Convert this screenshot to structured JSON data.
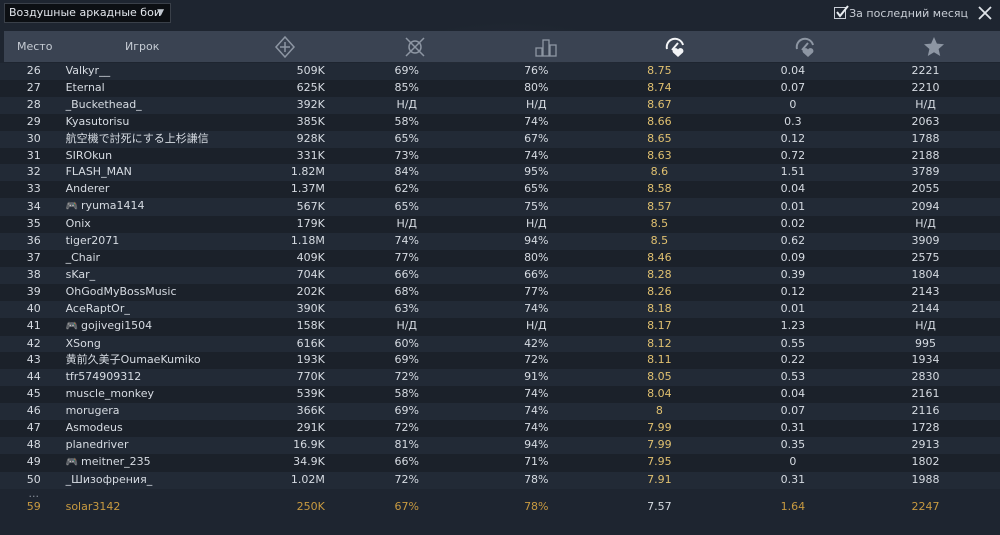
{
  "mode_selector": {
    "value": "Воздушные аркадные бои"
  },
  "period": {
    "label": "За последний месяц",
    "checked": true
  },
  "columns": {
    "place": "Место",
    "player": "Игрок",
    "icons": [
      "score-icon",
      "kills-per-battle-icon",
      "win-rate-icon",
      "efficiency-icon",
      "deaths-ratio-icon",
      "star-icon"
    ]
  },
  "rows": [
    {
      "place": "26",
      "player": "Valkyr__",
      "gamepad": false,
      "c1": "509K",
      "c2": "69%",
      "c3": "76%",
      "c4": "8.75",
      "c5": "0.04",
      "c6": "2221"
    },
    {
      "place": "27",
      "player": "Eternal",
      "gamepad": false,
      "c1": "625K",
      "c2": "85%",
      "c3": "80%",
      "c4": "8.74",
      "c5": "0.07",
      "c6": "2210"
    },
    {
      "place": "28",
      "player": "_Buckethead_",
      "gamepad": false,
      "c1": "392K",
      "c2": "Н/Д",
      "c3": "Н/Д",
      "c4": "8.67",
      "c5": "0",
      "c6": "Н/Д"
    },
    {
      "place": "29",
      "player": "Kyasutorisu",
      "gamepad": false,
      "c1": "385K",
      "c2": "58%",
      "c3": "74%",
      "c4": "8.66",
      "c5": "0.3",
      "c6": "2063"
    },
    {
      "place": "30",
      "player": "航空機で討死にする上杉謙信",
      "gamepad": false,
      "c1": "928K",
      "c2": "65%",
      "c3": "67%",
      "c4": "8.65",
      "c5": "0.12",
      "c6": "1788"
    },
    {
      "place": "31",
      "player": "SIROkun",
      "gamepad": false,
      "c1": "331K",
      "c2": "73%",
      "c3": "74%",
      "c4": "8.63",
      "c5": "0.72",
      "c6": "2188"
    },
    {
      "place": "32",
      "player": "FLASH_MAN",
      "gamepad": false,
      "c1": "1.82M",
      "c2": "84%",
      "c3": "95%",
      "c4": "8.6",
      "c5": "1.51",
      "c6": "3789"
    },
    {
      "place": "33",
      "player": "Anderer",
      "gamepad": false,
      "c1": "1.37M",
      "c2": "62%",
      "c3": "65%",
      "c4": "8.58",
      "c5": "0.04",
      "c6": "2055"
    },
    {
      "place": "34",
      "player": "ryuma1414",
      "gamepad": true,
      "c1": "567K",
      "c2": "65%",
      "c3": "75%",
      "c4": "8.57",
      "c5": "0.01",
      "c6": "2094"
    },
    {
      "place": "35",
      "player": "Onix",
      "gamepad": false,
      "c1": "179K",
      "c2": "Н/Д",
      "c3": "Н/Д",
      "c4": "8.5",
      "c5": "0.02",
      "c6": "Н/Д"
    },
    {
      "place": "36",
      "player": "tiger2071",
      "gamepad": false,
      "c1": "1.18M",
      "c2": "74%",
      "c3": "94%",
      "c4": "8.5",
      "c5": "0.62",
      "c6": "3909"
    },
    {
      "place": "37",
      "player": "_Chair",
      "gamepad": false,
      "c1": "409K",
      "c2": "77%",
      "c3": "80%",
      "c4": "8.46",
      "c5": "0.09",
      "c6": "2575"
    },
    {
      "place": "38",
      "player": "sKar_",
      "gamepad": false,
      "c1": "704K",
      "c2": "66%",
      "c3": "66%",
      "c4": "8.28",
      "c5": "0.39",
      "c6": "1804"
    },
    {
      "place": "39",
      "player": "OhGodMyBossMusic",
      "gamepad": false,
      "c1": "202K",
      "c2": "68%",
      "c3": "77%",
      "c4": "8.26",
      "c5": "0.12",
      "c6": "2143"
    },
    {
      "place": "40",
      "player": "AceRaptOr_",
      "gamepad": false,
      "c1": "390K",
      "c2": "63%",
      "c3": "74%",
      "c4": "8.18",
      "c5": "0.01",
      "c6": "2144"
    },
    {
      "place": "41",
      "player": "gojivegi1504",
      "gamepad": true,
      "c1": "158K",
      "c2": "Н/Д",
      "c3": "Н/Д",
      "c4": "8.17",
      "c5": "1.23",
      "c6": "Н/Д"
    },
    {
      "place": "42",
      "player": "XSong",
      "gamepad": false,
      "c1": "616K",
      "c2": "60%",
      "c3": "42%",
      "c4": "8.12",
      "c5": "0.55",
      "c6": "995"
    },
    {
      "place": "43",
      "player": "黄前久美子OumaeKumiko",
      "gamepad": false,
      "c1": "193K",
      "c2": "69%",
      "c3": "72%",
      "c4": "8.11",
      "c5": "0.22",
      "c6": "1934"
    },
    {
      "place": "44",
      "player": "tfr574909312",
      "gamepad": false,
      "c1": "770K",
      "c2": "72%",
      "c3": "91%",
      "c4": "8.05",
      "c5": "0.53",
      "c6": "2830"
    },
    {
      "place": "45",
      "player": "muscle_monkey",
      "gamepad": false,
      "c1": "539K",
      "c2": "58%",
      "c3": "74%",
      "c4": "8.04",
      "c5": "0.04",
      "c6": "2161"
    },
    {
      "place": "46",
      "player": "morugera",
      "gamepad": false,
      "c1": "366K",
      "c2": "69%",
      "c3": "74%",
      "c4": "8",
      "c5": "0.07",
      "c6": "2116"
    },
    {
      "place": "47",
      "player": "Asmodeus",
      "gamepad": false,
      "c1": "291K",
      "c2": "72%",
      "c3": "74%",
      "c4": "7.99",
      "c5": "0.31",
      "c6": "1728"
    },
    {
      "place": "48",
      "player": "planedriver",
      "gamepad": false,
      "c1": "16.9K",
      "c2": "81%",
      "c3": "94%",
      "c4": "7.99",
      "c5": "0.35",
      "c6": "2913"
    },
    {
      "place": "49",
      "player": "meitner_235",
      "gamepad": true,
      "c1": "34.9K",
      "c2": "66%",
      "c3": "71%",
      "c4": "7.95",
      "c5": "0",
      "c6": "1802"
    },
    {
      "place": "50",
      "player": "_Шизофрения_",
      "gamepad": false,
      "c1": "1.02M",
      "c2": "72%",
      "c3": "78%",
      "c4": "7.91",
      "c5": "0.31",
      "c6": "1988"
    }
  ],
  "ellipsis": "...",
  "self_row": {
    "place": "59",
    "player": "solar3142",
    "c1": "250K",
    "c2": "67%",
    "c3": "78%",
    "c4": "7.57",
    "c5": "1.64",
    "c6": "2247"
  },
  "colors": {
    "highlight": "#e0c070",
    "self": "#c89a40",
    "header": "#3a4352"
  }
}
